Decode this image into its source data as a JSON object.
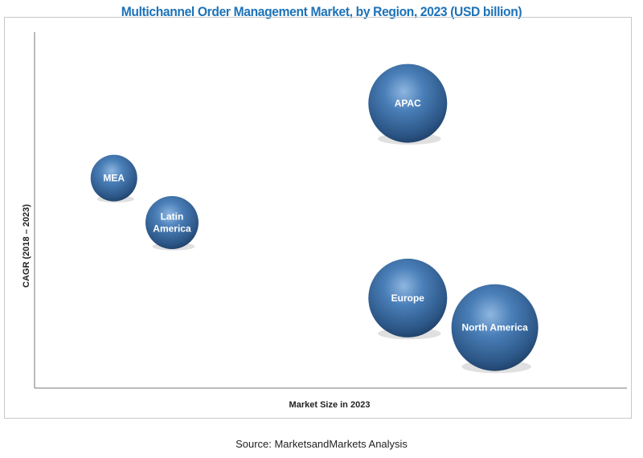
{
  "chart_data": {
    "type": "scatter",
    "subtype": "bubble",
    "title": "Multichannel Order Management Market, by Region, 2023 (USD billion)",
    "xlabel": "Market Size in 2023",
    "ylabel": "CAGR (2018 – 2023)",
    "xlim": [
      0,
      100
    ],
    "ylim": [
      0,
      100
    ],
    "grid": false,
    "bubble_color": "#2f5f93",
    "points": [
      {
        "label": "APAC",
        "x": 63,
        "y": 80,
        "size": 49
      },
      {
        "label": "MEA",
        "x": 13.4,
        "y": 59,
        "size": 29
      },
      {
        "label": "Latin America",
        "x": 23.2,
        "y": 46.5,
        "size": 33
      },
      {
        "label": "Europe",
        "x": 63,
        "y": 25.3,
        "size": 49
      },
      {
        "label": "North America",
        "x": 77.7,
        "y": 17,
        "size": 54
      }
    ]
  },
  "source": "Source: MarketsandMarkets Analysis"
}
